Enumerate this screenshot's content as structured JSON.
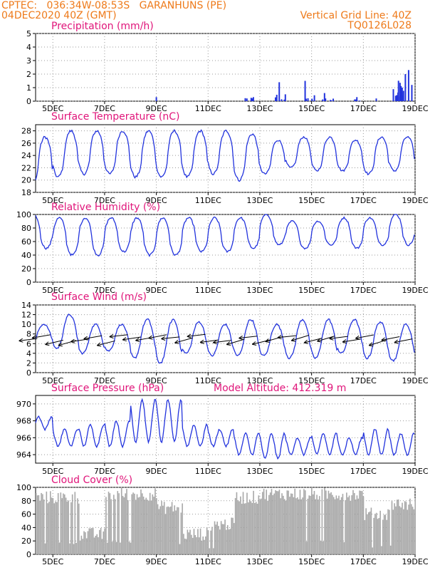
{
  "header": {
    "station": "CPTEC:   036:34W-08:53S   GARANHUNS (PE)",
    "run": "04DEC2020 40Z (GMT)",
    "grid_note": "Vertical Grid Line: 40Z",
    "code": "TQ0126L028"
  },
  "colors": {
    "header": "#ee7a1a",
    "title": "#e0157a",
    "series": "#2233dd",
    "cloud": "#a8a8a8",
    "grid": "#999999"
  },
  "date_ticks": [
    "5DEC",
    "7DEC",
    "9DEC",
    "11DEC",
    "13DEC",
    "15DEC",
    "17DEC",
    "19DEC"
  ],
  "extra_title": "Model Altitude: 412.319 m",
  "chart_data": [
    {
      "type": "bar",
      "title": "Precipitation (mm/h)",
      "ylim": [
        0,
        5
      ],
      "yticks": [
        0,
        1,
        2,
        3,
        4,
        5
      ],
      "x": [
        "09DEC",
        "12DEC12",
        "12DEC18",
        "13DEC18",
        "14DEC18",
        "15DEC12",
        "16DEC18",
        "17DEC12",
        "18DEC06",
        "18DEC12",
        "18DEC15",
        "18DEC18",
        "18DEC21"
      ],
      "values": [
        0.3,
        0.2,
        0.3,
        1.4,
        1.5,
        0.6,
        0.3,
        0.2,
        0.4,
        1.0,
        2.0,
        2.3,
        1.2
      ]
    },
    {
      "type": "line",
      "title": "Surface Temperature (nC)",
      "ylim": [
        18,
        29
      ],
      "yticks": [
        18,
        20,
        22,
        24,
        26,
        28
      ],
      "series": [
        {
          "x": [
            "04DEC",
            "05DEC",
            "06DEC",
            "07DEC",
            "08DEC",
            "09DEC",
            "10DEC",
            "11DEC",
            "12DEC",
            "13DEC",
            "14DEC",
            "15DEC",
            "16DEC",
            "17DEC",
            "18DEC",
            "19DEC"
          ],
          "daily_min": [
            19.2,
            20.5,
            21,
            21,
            20.5,
            20.5,
            20.5,
            21,
            20,
            21,
            22,
            21.5,
            21.5,
            21,
            21.5,
            21.5
          ],
          "daily_max": [
            27,
            28,
            28,
            28,
            28,
            28,
            28,
            28,
            27.5,
            26.5,
            27,
            27,
            26.5,
            27,
            27,
            25
          ]
        }
      ]
    },
    {
      "type": "line",
      "title": "Relative Humidity (%)",
      "ylim": [
        0,
        100
      ],
      "yticks": [
        0,
        20,
        40,
        60,
        80,
        100
      ],
      "series": [
        {
          "daily_min": [
            50,
            40,
            40,
            45,
            40,
            40,
            45,
            45,
            50,
            55,
            50,
            55,
            50,
            55,
            55,
            65
          ],
          "daily_max": [
            100,
            95,
            95,
            95,
            95,
            95,
            95,
            95,
            95,
            100,
            90,
            90,
            95,
            95,
            100,
            100
          ]
        }
      ]
    },
    {
      "type": "line",
      "title": "Surface Wind (m/s)",
      "ylim": [
        0,
        14
      ],
      "yticks": [
        0,
        2,
        4,
        6,
        8,
        10,
        12,
        14
      ],
      "series": [
        {
          "daily_min": [
            6,
            5,
            4,
            4.5,
            3,
            2,
            4,
            3.5,
            3.5,
            3.5,
            3,
            3,
            4,
            3,
            2.5,
            4
          ],
          "daily_max": [
            10,
            12,
            10,
            10,
            11,
            11,
            10.5,
            10,
            11,
            10,
            11,
            11,
            11,
            10.5,
            10,
            10
          ]
        }
      ],
      "barbs_note": "wind arrows pointing toward west-northwest, ~0.5 per day"
    },
    {
      "type": "line",
      "title": "Surface Pressure (hPa)",
      "ylim": [
        963,
        971
      ],
      "yticks": [
        964,
        966,
        968,
        970
      ],
      "series": [
        {
          "daily_min": [
            967,
            965,
            965,
            965,
            965.5,
            965.5,
            965,
            965,
            964,
            963.5,
            964,
            964,
            964,
            964,
            964,
            964
          ],
          "daily_max": [
            968.5,
            967,
            967.5,
            968,
            970.5,
            970.5,
            967.5,
            967,
            966.5,
            966.5,
            966,
            966.5,
            966,
            967,
            966.5,
            966
          ]
        }
      ]
    },
    {
      "type": "bar",
      "title": "Cloud Cover (%)",
      "ylim": [
        0,
        100
      ],
      "yticks": [
        0,
        20,
        40,
        60,
        80,
        100
      ],
      "segments": [
        {
          "from": "04DEC",
          "to": "06DEC",
          "level": 85
        },
        {
          "from": "06DEC",
          "to": "07DEC",
          "level": 30
        },
        {
          "from": "07DEC",
          "to": "09DEC",
          "level": 90
        },
        {
          "from": "09DEC",
          "to": "10DEC",
          "level": 70
        },
        {
          "from": "10DEC",
          "to": "11DEC",
          "level": 30
        },
        {
          "from": "11DEC",
          "to": "12DEC",
          "level": 45
        },
        {
          "from": "12DEC",
          "to": "13DEC",
          "level": 85
        },
        {
          "from": "13DEC",
          "to": "17DEC",
          "level": 90
        },
        {
          "from": "17DEC",
          "to": "18DEC",
          "level": 60
        },
        {
          "from": "18DEC",
          "to": "19DEC",
          "level": 75
        }
      ]
    }
  ]
}
